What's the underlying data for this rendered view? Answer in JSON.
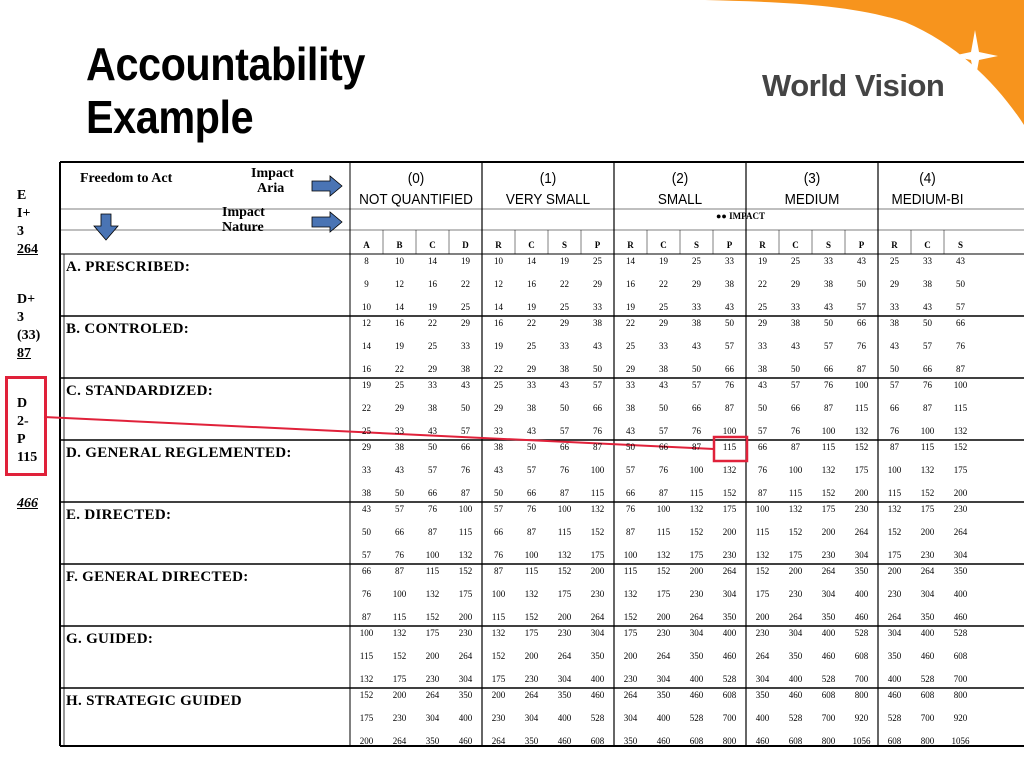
{
  "title": {
    "line1": "Accountability",
    "line2": "Example"
  },
  "logo": {
    "text": "World Vision"
  },
  "side_notes": {
    "block1": [
      "E",
      "I+",
      "3",
      "264"
    ],
    "block2": [
      "D+",
      "3",
      "(33)",
      "87"
    ],
    "block3": [
      "D",
      "2-",
      "P",
      "115"
    ],
    "total": "466"
  },
  "header": {
    "freedom_to_act": "Freedom to Act",
    "impact_aria": [
      "Impact",
      "Aria"
    ],
    "impact_nature": [
      "Impact",
      "Nature"
    ],
    "impact_note": "●● IMPACT",
    "groups": [
      {
        "num": "(0)",
        "name": "NOT QUANTIFIED"
      },
      {
        "num": "(1)",
        "name": "VERY SMALL"
      },
      {
        "num": "(2)",
        "name": "SMALL"
      },
      {
        "num": "(3)",
        "name": "MEDIUM"
      },
      {
        "num": "(4)",
        "name": "MEDIUM-BI"
      }
    ],
    "subcols": [
      "A",
      "B",
      "C",
      "D",
      "R",
      "C",
      "S",
      "P",
      "R",
      "C",
      "S",
      "P",
      "R",
      "C",
      "S",
      "P",
      "R",
      "C",
      "S"
    ]
  },
  "rows": [
    {
      "label": "A. PRESCRIBED:",
      "values": [
        [
          "8",
          "10",
          "14",
          "19",
          "10",
          "14",
          "19",
          "25",
          "14",
          "19",
          "25",
          "33",
          "19",
          "25",
          "33",
          "43",
          "25",
          "33",
          "43"
        ],
        [
          "9",
          "12",
          "16",
          "22",
          "12",
          "16",
          "22",
          "29",
          "16",
          "22",
          "29",
          "38",
          "22",
          "29",
          "38",
          "50",
          "29",
          "38",
          "50"
        ],
        [
          "10",
          "14",
          "19",
          "25",
          "14",
          "19",
          "25",
          "33",
          "19",
          "25",
          "33",
          "43",
          "25",
          "33",
          "43",
          "57",
          "33",
          "43",
          "57"
        ]
      ]
    },
    {
      "label": "B. CONTROLED:",
      "values": [
        [
          "12",
          "16",
          "22",
          "29",
          "16",
          "22",
          "29",
          "38",
          "22",
          "29",
          "38",
          "50",
          "29",
          "38",
          "50",
          "66",
          "38",
          "50",
          "66"
        ],
        [
          "14",
          "19",
          "25",
          "33",
          "19",
          "25",
          "33",
          "43",
          "25",
          "33",
          "43",
          "57",
          "33",
          "43",
          "57",
          "76",
          "43",
          "57",
          "76"
        ],
        [
          "16",
          "22",
          "29",
          "38",
          "22",
          "29",
          "38",
          "50",
          "29",
          "38",
          "50",
          "66",
          "38",
          "50",
          "66",
          "87",
          "50",
          "66",
          "87"
        ]
      ]
    },
    {
      "label": "C. STANDARDIZED:",
      "values": [
        [
          "19",
          "25",
          "33",
          "43",
          "25",
          "33",
          "43",
          "57",
          "33",
          "43",
          "57",
          "76",
          "43",
          "57",
          "76",
          "100",
          "57",
          "76",
          "100"
        ],
        [
          "22",
          "29",
          "38",
          "50",
          "29",
          "38",
          "50",
          "66",
          "38",
          "50",
          "66",
          "87",
          "50",
          "66",
          "87",
          "115",
          "66",
          "87",
          "115"
        ],
        [
          "25",
          "33",
          "43",
          "57",
          "33",
          "43",
          "57",
          "76",
          "43",
          "57",
          "76",
          "100",
          "57",
          "76",
          "100",
          "132",
          "76",
          "100",
          "132"
        ]
      ]
    },
    {
      "label": "D. GENERAL REGLEMENTED:",
      "values": [
        [
          "29",
          "38",
          "50",
          "66",
          "38",
          "50",
          "66",
          "87",
          "50",
          "66",
          "87",
          "115",
          "66",
          "87",
          "115",
          "152",
          "87",
          "115",
          "152"
        ],
        [
          "33",
          "43",
          "57",
          "76",
          "43",
          "57",
          "76",
          "100",
          "57",
          "76",
          "100",
          "132",
          "76",
          "100",
          "132",
          "175",
          "100",
          "132",
          "175"
        ],
        [
          "38",
          "50",
          "66",
          "87",
          "50",
          "66",
          "87",
          "115",
          "66",
          "87",
          "115",
          "152",
          "87",
          "115",
          "152",
          "200",
          "115",
          "152",
          "200"
        ]
      ]
    },
    {
      "label": "E. DIRECTED:",
      "values": [
        [
          "43",
          "57",
          "76",
          "100",
          "57",
          "76",
          "100",
          "132",
          "76",
          "100",
          "132",
          "175",
          "100",
          "132",
          "175",
          "230",
          "132",
          "175",
          "230"
        ],
        [
          "50",
          "66",
          "87",
          "115",
          "66",
          "87",
          "115",
          "152",
          "87",
          "115",
          "152",
          "200",
          "115",
          "152",
          "200",
          "264",
          "152",
          "200",
          "264"
        ],
        [
          "57",
          "76",
          "100",
          "132",
          "76",
          "100",
          "132",
          "175",
          "100",
          "132",
          "175",
          "230",
          "132",
          "175",
          "230",
          "304",
          "175",
          "230",
          "304"
        ]
      ]
    },
    {
      "label": "F. GENERAL DIRECTED:",
      "values": [
        [
          "66",
          "87",
          "115",
          "152",
          "87",
          "115",
          "152",
          "200",
          "115",
          "152",
          "200",
          "264",
          "152",
          "200",
          "264",
          "350",
          "200",
          "264",
          "350"
        ],
        [
          "76",
          "100",
          "132",
          "175",
          "100",
          "132",
          "175",
          "230",
          "132",
          "175",
          "230",
          "304",
          "175",
          "230",
          "304",
          "400",
          "230",
          "304",
          "400"
        ],
        [
          "87",
          "115",
          "152",
          "200",
          "115",
          "152",
          "200",
          "264",
          "152",
          "200",
          "264",
          "350",
          "200",
          "264",
          "350",
          "460",
          "264",
          "350",
          "460"
        ]
      ]
    },
    {
      "label": "G. GUIDED:",
      "values": [
        [
          "100",
          "132",
          "175",
          "230",
          "132",
          "175",
          "230",
          "304",
          "175",
          "230",
          "304",
          "400",
          "230",
          "304",
          "400",
          "528",
          "304",
          "400",
          "528"
        ],
        [
          "115",
          "152",
          "200",
          "264",
          "152",
          "200",
          "264",
          "350",
          "200",
          "264",
          "350",
          "460",
          "264",
          "350",
          "460",
          "608",
          "350",
          "460",
          "608"
        ],
        [
          "132",
          "175",
          "230",
          "304",
          "175",
          "230",
          "304",
          "400",
          "230",
          "304",
          "400",
          "528",
          "304",
          "400",
          "528",
          "700",
          "400",
          "528",
          "700"
        ]
      ]
    },
    {
      "label": "H. STRATEGIC GUIDED",
      "values": [
        [
          "152",
          "200",
          "264",
          "350",
          "200",
          "264",
          "350",
          "460",
          "264",
          "350",
          "460",
          "608",
          "350",
          "460",
          "608",
          "800",
          "460",
          "608",
          "800"
        ],
        [
          "175",
          "230",
          "304",
          "400",
          "230",
          "304",
          "400",
          "528",
          "304",
          "400",
          "528",
          "700",
          "400",
          "528",
          "700",
          "920",
          "528",
          "700",
          "920"
        ],
        [
          "200",
          "264",
          "350",
          "460",
          "264",
          "350",
          "460",
          "608",
          "350",
          "460",
          "608",
          "800",
          "460",
          "608",
          "800",
          "1056",
          "608",
          "800",
          "1056"
        ]
      ]
    }
  ],
  "highlight": {
    "row": 3,
    "col": 11,
    "value": "115"
  },
  "colors": {
    "accent": "#f7941d",
    "logo_text": "#444444",
    "highlight": "#e0213a",
    "arrow": "#4a74b4"
  }
}
